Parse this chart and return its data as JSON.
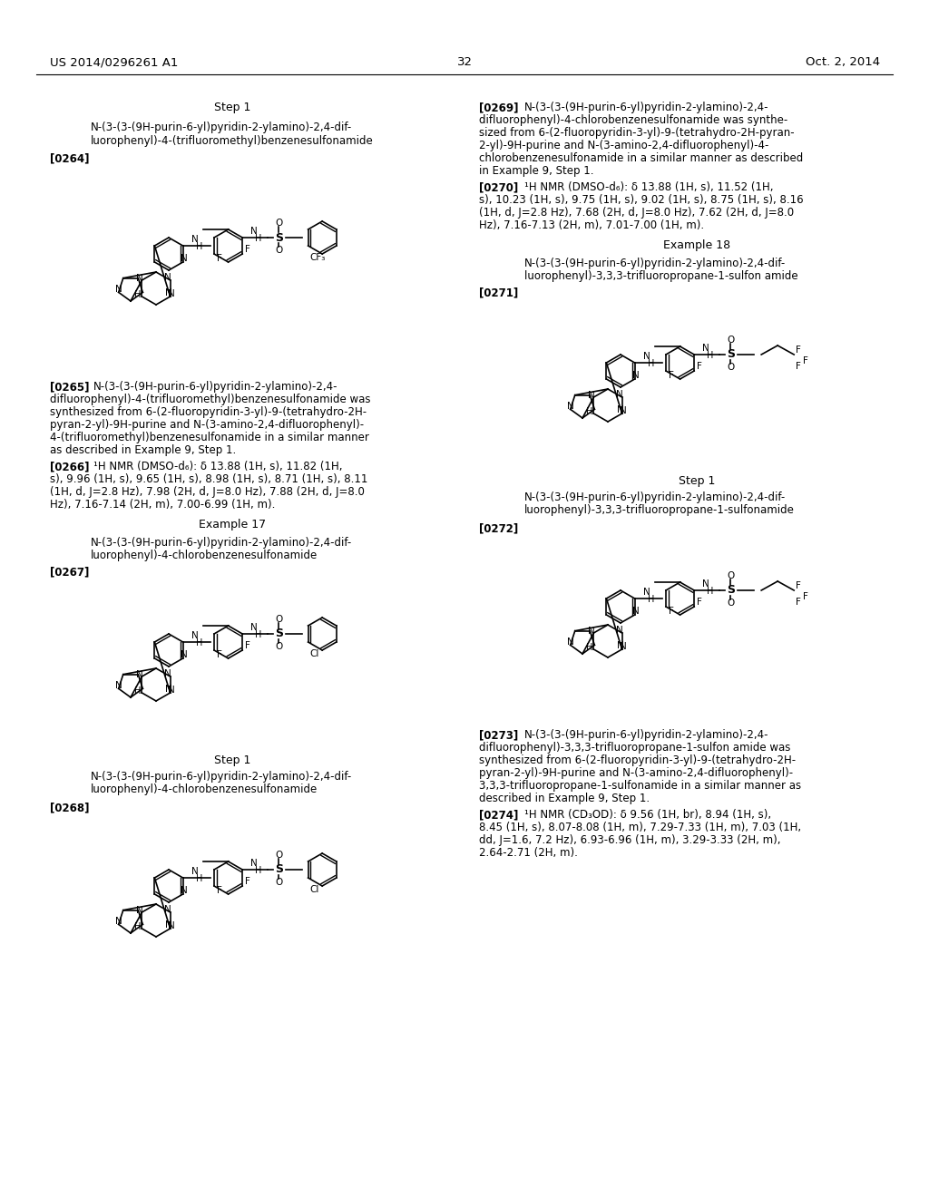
{
  "background_color": "#ffffff",
  "header_left": "US 2014/0296261 A1",
  "header_right": "Oct. 2, 2014",
  "page_number": "32"
}
